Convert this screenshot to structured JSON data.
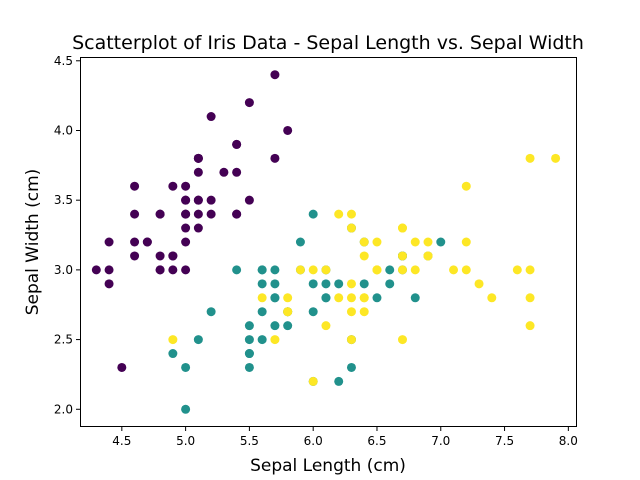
{
  "chart_data": {
    "type": "scatter",
    "title": "Scatterplot of Iris Data - Sepal Length vs. Sepal Width",
    "xlabel": "Sepal Length (cm)",
    "ylabel": "Sepal Width (cm)",
    "xlim": [
      4.18,
      8.06
    ],
    "ylim": [
      1.88,
      4.52
    ],
    "xticks": [
      "4.5",
      "5.0",
      "5.5",
      "6.0",
      "6.5",
      "7.0",
      "7.5",
      "8.0"
    ],
    "yticks": [
      "2.0",
      "2.5",
      "3.0",
      "3.5",
      "4.0",
      "4.5"
    ],
    "grid": false,
    "legend": "none",
    "colors": [
      "#440154",
      "#21918c",
      "#fde725"
    ],
    "series": [
      {
        "color": "#440154",
        "x": [
          5.1,
          4.9,
          4.7,
          4.6,
          5.0,
          5.4,
          4.6,
          5.0,
          4.4,
          4.9,
          5.4,
          4.8,
          4.8,
          4.3,
          5.8,
          5.7,
          5.4,
          5.1,
          5.7,
          5.1,
          5.4,
          5.1,
          4.6,
          5.1,
          4.8,
          5.0,
          5.0,
          5.2,
          5.2,
          4.7,
          4.8,
          5.4,
          5.2,
          5.5,
          4.9,
          5.0,
          5.5,
          4.9,
          4.4,
          5.1,
          5.0,
          4.5,
          4.4,
          5.0,
          5.1,
          4.8,
          5.1,
          4.6,
          5.3,
          5.0
        ],
        "y": [
          3.5,
          3.0,
          3.2,
          3.1,
          3.6,
          3.9,
          3.4,
          3.4,
          2.9,
          3.1,
          3.7,
          3.4,
          3.0,
          3.0,
          4.0,
          4.4,
          3.9,
          3.5,
          3.8,
          3.8,
          3.4,
          3.7,
          3.6,
          3.3,
          3.4,
          3.0,
          3.4,
          3.5,
          3.4,
          3.2,
          3.1,
          3.4,
          4.1,
          4.2,
          3.1,
          3.2,
          3.5,
          3.6,
          3.0,
          3.4,
          3.5,
          2.3,
          3.2,
          3.5,
          3.8,
          3.0,
          3.8,
          3.2,
          3.7,
          3.3
        ]
      },
      {
        "color": "#21918c",
        "x": [
          7.0,
          6.4,
          6.9,
          5.5,
          6.5,
          5.7,
          6.3,
          4.9,
          6.6,
          5.2,
          5.0,
          5.9,
          6.0,
          6.1,
          5.6,
          6.7,
          5.6,
          5.8,
          6.2,
          5.6,
          5.9,
          6.1,
          6.3,
          6.1,
          6.4,
          6.6,
          6.8,
          6.7,
          6.0,
          5.7,
          5.5,
          5.5,
          5.8,
          6.0,
          5.4,
          6.0,
          6.7,
          6.3,
          5.6,
          5.5,
          5.5,
          6.1,
          5.8,
          5.0,
          5.6,
          5.7,
          5.7,
          6.2,
          5.1,
          5.7
        ],
        "y": [
          3.2,
          3.2,
          3.1,
          2.3,
          2.8,
          2.8,
          3.3,
          2.4,
          2.9,
          2.7,
          2.0,
          3.0,
          2.2,
          2.9,
          2.9,
          3.1,
          3.0,
          2.7,
          2.2,
          2.5,
          3.2,
          2.8,
          2.5,
          2.8,
          2.9,
          3.0,
          2.8,
          3.0,
          2.9,
          2.6,
          2.4,
          2.4,
          2.7,
          2.7,
          3.0,
          3.4,
          3.1,
          2.3,
          3.0,
          2.5,
          2.6,
          3.0,
          2.6,
          2.3,
          2.7,
          3.0,
          2.9,
          2.9,
          2.5,
          2.8
        ]
      },
      {
        "color": "#fde725",
        "x": [
          6.3,
          5.8,
          7.1,
          6.3,
          6.5,
          7.6,
          4.9,
          7.3,
          6.7,
          7.2,
          6.5,
          6.4,
          6.8,
          5.7,
          5.8,
          6.4,
          6.5,
          7.7,
          7.7,
          6.0,
          6.9,
          5.6,
          7.7,
          6.3,
          6.7,
          7.2,
          6.2,
          6.1,
          6.4,
          7.2,
          7.4,
          7.9,
          6.4,
          6.3,
          6.1,
          7.7,
          6.3,
          6.4,
          6.0,
          6.9,
          6.7,
          6.9,
          5.8,
          6.8,
          6.7,
          6.7,
          6.3,
          6.5,
          6.2,
          5.9
        ],
        "y": [
          3.3,
          2.7,
          3.0,
          2.9,
          3.0,
          3.0,
          2.5,
          2.9,
          2.5,
          3.6,
          3.2,
          2.7,
          3.0,
          2.5,
          2.8,
          3.2,
          3.0,
          3.8,
          2.6,
          2.2,
          3.2,
          2.8,
          2.8,
          2.7,
          3.3,
          3.2,
          2.8,
          3.0,
          2.8,
          3.0,
          2.8,
          3.8,
          2.8,
          2.8,
          2.6,
          3.0,
          3.4,
          3.1,
          3.0,
          3.1,
          3.1,
          3.1,
          2.7,
          3.2,
          3.3,
          3.0,
          2.5,
          3.0,
          3.4,
          3.0
        ]
      }
    ]
  }
}
